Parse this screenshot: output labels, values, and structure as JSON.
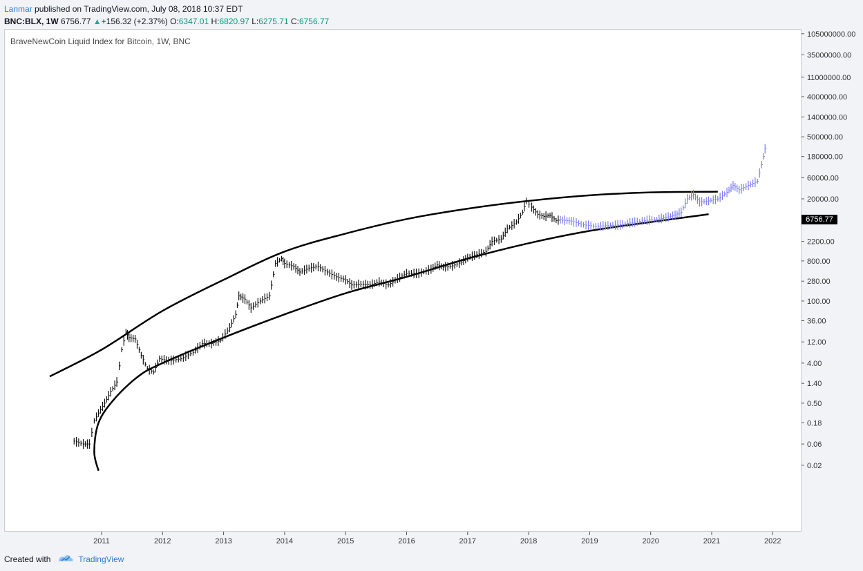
{
  "header": {
    "author": "Lanmar",
    "published": " published on TradingView.com, July 08, 2018 10:37 EDT",
    "symbol": "BNC:BLX, 1W",
    "price": "6756.77",
    "change": "+156.32 (+2.37%)",
    "o_label": "O:",
    "o_value": "6347.01",
    "h_label": "H:",
    "h_value": "6820.97",
    "l_label": "L:",
    "l_value": "6275.71",
    "c_label": "C:",
    "c_value": "6756.77"
  },
  "footer": {
    "created_with": "Created with",
    "brand": "TradingView"
  },
  "chart_data": {
    "type": "candlestick",
    "title": "BraveNewCoin Liquid Index for Bitcoin, 1W, BNC",
    "y_scale": "log",
    "last_price_label": "6756.77",
    "y_ticks": [
      "105000000.00",
      "35000000.00",
      "11000000.00",
      "4000000.00",
      "1400000.00",
      "500000.00",
      "180000.00",
      "60000.00",
      "20000.00",
      "2200.00",
      "800.00",
      "280.00",
      "100.00",
      "36.00",
      "12.00",
      "4.00",
      "1.40",
      "0.50",
      "0.18",
      "0.06",
      "0.02"
    ],
    "y_tick_values": [
      105000000,
      35000000,
      11000000,
      4000000,
      1400000,
      500000,
      180000,
      60000,
      20000,
      2200,
      800,
      280,
      100,
      36,
      12,
      4,
      1.4,
      0.5,
      0.18,
      0.06,
      0.02
    ],
    "x_ticks": [
      "2011",
      "2012",
      "2013",
      "2014",
      "2015",
      "2016",
      "2017",
      "2018",
      "2019",
      "2020",
      "2021",
      "2022"
    ],
    "x_tick_years": [
      2011,
      2012,
      2013,
      2014,
      2015,
      2016,
      2017,
      2018,
      2019,
      2020,
      2021,
      2022
    ],
    "price_history": [
      [
        2010.55,
        0.07
      ],
      [
        2010.7,
        0.06
      ],
      [
        2010.8,
        0.06
      ],
      [
        2010.88,
        0.2
      ],
      [
        2010.95,
        0.3
      ],
      [
        2011.05,
        0.5
      ],
      [
        2011.15,
        0.9
      ],
      [
        2011.25,
        1.5
      ],
      [
        2011.33,
        8
      ],
      [
        2011.4,
        20
      ],
      [
        2011.45,
        15
      ],
      [
        2011.55,
        14
      ],
      [
        2011.65,
        6
      ],
      [
        2011.75,
        3
      ],
      [
        2011.85,
        2.5
      ],
      [
        2011.95,
        5
      ],
      [
        2012.1,
        4.5
      ],
      [
        2012.3,
        5
      ],
      [
        2012.5,
        7
      ],
      [
        2012.65,
        11
      ],
      [
        2012.8,
        11
      ],
      [
        2012.95,
        13
      ],
      [
        2013.1,
        25
      ],
      [
        2013.2,
        50
      ],
      [
        2013.25,
        130
      ],
      [
        2013.35,
        110
      ],
      [
        2013.45,
        70
      ],
      [
        2013.6,
        100
      ],
      [
        2013.75,
        130
      ],
      [
        2013.85,
        700
      ],
      [
        2013.95,
        900
      ],
      [
        2014.0,
        700
      ],
      [
        2014.15,
        600
      ],
      [
        2014.25,
        450
      ],
      [
        2014.4,
        550
      ],
      [
        2014.55,
        600
      ],
      [
        2014.7,
        450
      ],
      [
        2014.85,
        350
      ],
      [
        2015.0,
        300
      ],
      [
        2015.1,
        230
      ],
      [
        2015.25,
        240
      ],
      [
        2015.4,
        230
      ],
      [
        2015.55,
        270
      ],
      [
        2015.7,
        230
      ],
      [
        2015.85,
        320
      ],
      [
        2016.0,
        420
      ],
      [
        2016.2,
        420
      ],
      [
        2016.4,
        520
      ],
      [
        2016.5,
        650
      ],
      [
        2016.6,
        580
      ],
      [
        2016.75,
        620
      ],
      [
        2016.9,
        750
      ],
      [
        2017.0,
        950
      ],
      [
        2017.15,
        1100
      ],
      [
        2017.3,
        1300
      ],
      [
        2017.4,
        2200
      ],
      [
        2017.55,
        2500
      ],
      [
        2017.65,
        4200
      ],
      [
        2017.8,
        6000
      ],
      [
        2017.9,
        10000
      ],
      [
        2017.96,
        18000
      ],
      [
        2018.05,
        13000
      ],
      [
        2018.15,
        9000
      ],
      [
        2018.25,
        8000
      ],
      [
        2018.35,
        8500
      ],
      [
        2018.45,
        6500
      ],
      [
        2018.52,
        6757
      ]
    ],
    "projection": [
      [
        2018.52,
        6757
      ],
      [
        2018.7,
        6300
      ],
      [
        2018.9,
        5200
      ],
      [
        2019.1,
        4800
      ],
      [
        2019.3,
        5000
      ],
      [
        2019.5,
        5200
      ],
      [
        2019.7,
        5900
      ],
      [
        2019.9,
        6500
      ],
      [
        2020.1,
        6900
      ],
      [
        2020.25,
        7600
      ],
      [
        2020.4,
        8700
      ],
      [
        2020.5,
        10000
      ],
      [
        2020.6,
        20000
      ],
      [
        2020.7,
        25000
      ],
      [
        2020.8,
        17000
      ],
      [
        2020.95,
        18000
      ],
      [
        2021.1,
        20000
      ],
      [
        2021.25,
        28000
      ],
      [
        2021.35,
        40000
      ],
      [
        2021.45,
        32000
      ],
      [
        2021.6,
        40000
      ],
      [
        2021.75,
        50000
      ],
      [
        2021.85,
        180000
      ],
      [
        2021.9,
        400000
      ]
    ],
    "upper_curve": [
      [
        2010.15,
        2.0
      ],
      [
        2011.0,
        8
      ],
      [
        2012.0,
        60
      ],
      [
        2013.0,
        300
      ],
      [
        2014.0,
        1300
      ],
      [
        2015.0,
        3300
      ],
      [
        2016.0,
        7000
      ],
      [
        2017.0,
        12000
      ],
      [
        2018.0,
        18000
      ],
      [
        2019.0,
        24000
      ],
      [
        2020.0,
        28000
      ],
      [
        2021.1,
        29000
      ]
    ],
    "lower_curve": [
      [
        2010.95,
        0.015
      ],
      [
        2010.88,
        0.04
      ],
      [
        2010.95,
        0.18
      ],
      [
        2011.2,
        0.6
      ],
      [
        2011.6,
        2
      ],
      [
        2012.0,
        4
      ],
      [
        2013.0,
        15
      ],
      [
        2014.0,
        50
      ],
      [
        2015.0,
        150
      ],
      [
        2016.0,
        350
      ],
      [
        2017.0,
        900
      ],
      [
        2018.0,
        2000
      ],
      [
        2019.0,
        3800
      ],
      [
        2020.0,
        6000
      ],
      [
        2020.95,
        9000
      ]
    ]
  }
}
